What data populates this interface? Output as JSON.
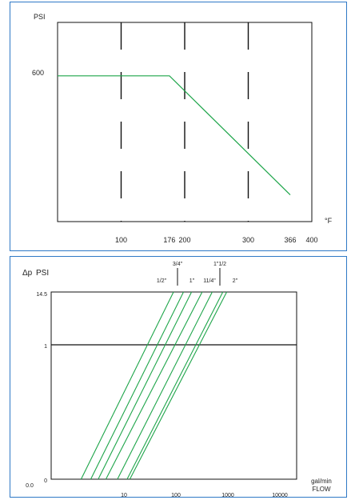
{
  "colors": {
    "frame": "#2f79c6",
    "curve": "#1ea54a",
    "axis": "#111111"
  },
  "chart_data": [
    {
      "type": "line",
      "title": "",
      "ylabel": "PSI",
      "xlabel": "°F",
      "xlim": [
        0,
        400
      ],
      "ylim": [
        0,
        820
      ],
      "x_tick_labels": [
        "100",
        "176",
        "200",
        "300",
        "366",
        "400"
      ],
      "x_ticks": [
        100,
        176,
        200,
        300,
        366,
        400
      ],
      "y_tick_labels": [
        "600"
      ],
      "y_ticks": [
        600
      ],
      "series": [
        {
          "x": [
            0,
            176,
            366
          ],
          "y": [
            600,
            600,
            110
          ]
        }
      ],
      "vertical_gridlines_at": [
        100,
        200,
        300
      ],
      "grid": "dashed vertical"
    },
    {
      "type": "line",
      "title": "",
      "xscale": "log",
      "ylabel_symbol": "Δp",
      "ylabel": "PSI",
      "xlabel_unit": "gal/min",
      "xlabel": "FLOW",
      "origin_label": "0.0",
      "x_tick_labels": [
        "10",
        "100",
        "1000",
        "10000"
      ],
      "x_ticks": [
        10,
        100,
        1000,
        10000
      ],
      "y_tick_labels": [
        "14.5",
        "1",
        "0"
      ],
      "size_labels": [
        "3/4\"",
        "1\"1/2",
        "1/2\"",
        "1\"",
        "11/4\"",
        "2\""
      ],
      "series": [
        {
          "x": [
            1.5,
            90
          ],
          "y": [
            0,
            14.5
          ]
        },
        {
          "x": [
            2.3,
            140
          ],
          "y": [
            0,
            14.5
          ]
        },
        {
          "x": [
            3.2,
            200
          ],
          "y": [
            0,
            14.5
          ]
        },
        {
          "x": [
            4.5,
            320
          ],
          "y": [
            0,
            14.5
          ]
        },
        {
          "x": [
            7.5,
            500
          ],
          "y": [
            0,
            14.5
          ]
        },
        {
          "x": [
            11.5,
            800
          ],
          "y": [
            0,
            14.5
          ]
        },
        {
          "x": [
            13,
            950
          ],
          "y": [
            0,
            14.5
          ]
        }
      ]
    }
  ]
}
